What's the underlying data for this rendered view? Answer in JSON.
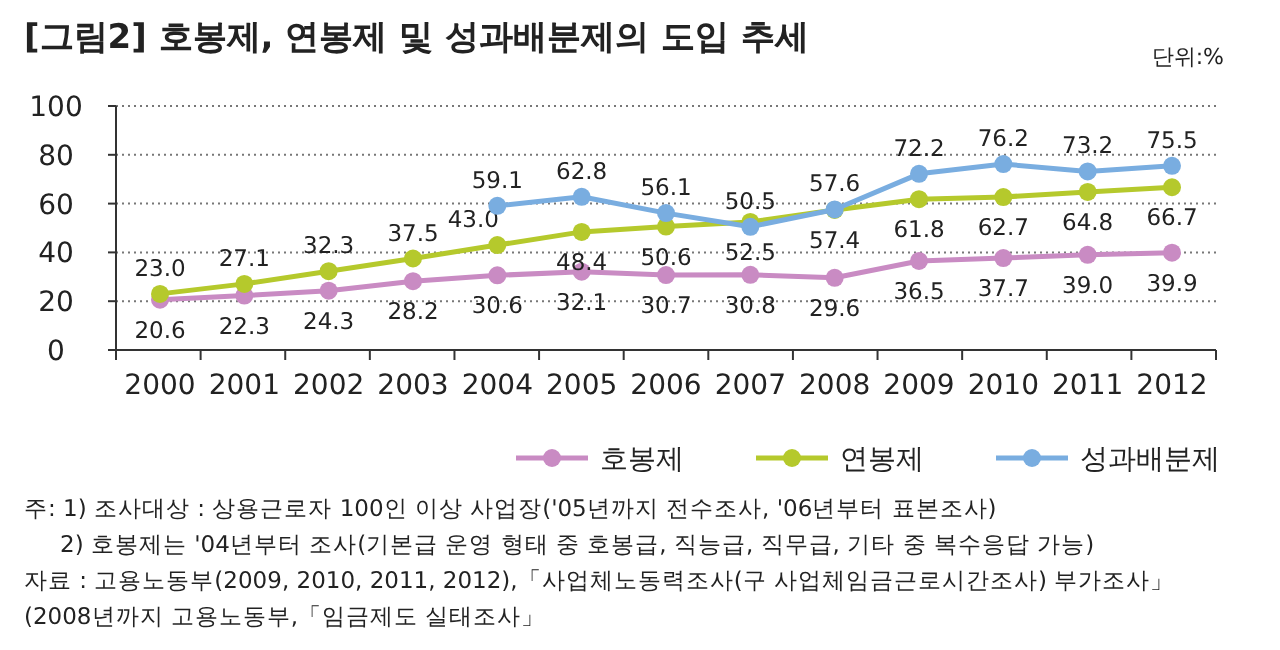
{
  "chart_data": {
    "type": "line",
    "title": "[그림2] 호봉제, 연봉제 및 성과배분제의 도입 추세",
    "categories": [
      "2000",
      "2001",
      "2002",
      "2003",
      "2004",
      "2005",
      "2006",
      "2007",
      "2008",
      "2009",
      "2010",
      "2011",
      "2012"
    ],
    "series": [
      {
        "name": "호봉제",
        "color": "#c98bc3",
        "values": [
          20.6,
          22.3,
          24.3,
          28.2,
          30.6,
          32.1,
          30.7,
          30.8,
          29.6,
          36.5,
          37.7,
          39.0,
          39.9
        ],
        "value_labels": [
          "20.6",
          "22.3",
          "24.3",
          "28.2",
          "30.6",
          "32.1",
          "30.7",
          "30.8",
          "29.6",
          "36.5",
          "37.7",
          "39.0",
          "39.9"
        ]
      },
      {
        "name": "연봉제",
        "color": "#b5c92c",
        "values": [
          23.0,
          27.1,
          32.3,
          37.5,
          43.0,
          48.4,
          50.6,
          52.5,
          57.4,
          61.8,
          62.7,
          64.8,
          66.7
        ],
        "value_labels": [
          "23.0",
          "27.1",
          "32.3",
          "37.5",
          "43.0",
          "48.4",
          "50.6",
          "52.5",
          "57.4",
          "61.8",
          "62.7",
          "64.8",
          "66.7"
        ]
      },
      {
        "name": "성과배분제",
        "color": "#79ade0",
        "values": [
          null,
          null,
          null,
          null,
          59.1,
          62.8,
          56.1,
          50.5,
          57.6,
          72.2,
          76.2,
          73.2,
          75.5
        ],
        "value_labels": [
          null,
          null,
          null,
          null,
          "59.1",
          "62.8",
          "56.1",
          "50.5",
          "57.6",
          "72.2",
          "76.2",
          "73.2",
          "75.5"
        ]
      }
    ],
    "ylim": [
      0,
      100
    ],
    "yticks": [
      0,
      20,
      40,
      60,
      80,
      100
    ],
    "grid": "y",
    "legend": "bottom right",
    "marker": "circle",
    "annotations": [
      "단위:%",
      "주: 1) 조사대상 : 상용근로자 100인 이상 사업장('05년까지 전수조사, '06년부터 표본조사)",
      "2) 호봉제는 '04년부터 조사(기본급 운영 형태 중 호봉급, 직능급, 직무급, 기타 중 복수응답 가능)",
      "자료 : 고용노동부(2009, 2010, 2011, 2012),「사업체노동력조사(구 사업체임금근로시간조사) 부가조사」",
      "(2008년까지 고용노동부,「임금제도 실태조사」"
    ]
  }
}
